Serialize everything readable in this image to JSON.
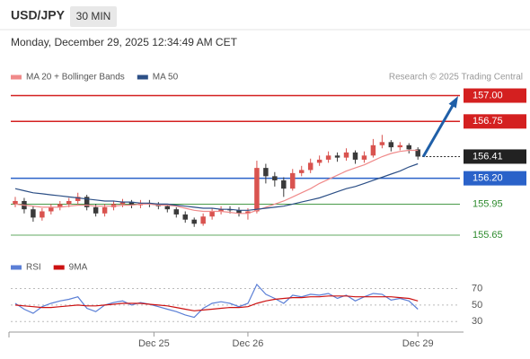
{
  "header": {
    "symbol": "USD/JPY",
    "timeframe": "30 MIN",
    "timestamp": "Monday, December 29, 2025 12:34:49 AM CET"
  },
  "chart_data": [
    {
      "type": "candlestick",
      "credit": "Research © 2025 Trading Central",
      "xlim": [
        -0.5,
        50.5
      ],
      "ylim": [
        155.45,
        157.1
      ],
      "up_color": "#d9534f",
      "down_color": "#3a3a3a",
      "open": [
        155.95,
        155.98,
        155.9,
        155.82,
        155.88,
        155.92,
        155.95,
        155.98,
        156.02,
        155.92,
        155.86,
        155.92,
        155.95,
        155.97,
        155.94,
        155.96,
        155.95,
        155.93,
        155.9,
        155.85,
        155.8,
        155.76,
        155.83,
        155.88,
        155.9,
        155.89,
        155.86,
        155.88,
        156.3,
        156.22,
        156.18,
        156.1,
        156.25,
        156.28,
        156.35,
        156.38,
        156.42,
        156.4,
        156.45,
        156.38,
        156.42,
        156.52,
        156.55,
        156.5,
        156.52,
        156.48
      ],
      "high": [
        156.02,
        156.01,
        155.93,
        155.91,
        155.95,
        155.98,
        156.01,
        156.06,
        156.04,
        155.95,
        155.95,
        155.98,
        156.0,
        155.99,
        155.99,
        155.99,
        155.97,
        155.95,
        155.92,
        155.88,
        155.82,
        155.86,
        155.91,
        155.93,
        155.93,
        155.92,
        155.91,
        156.37,
        156.34,
        156.26,
        156.21,
        156.29,
        156.32,
        156.39,
        156.42,
        156.46,
        156.45,
        156.49,
        156.47,
        156.46,
        156.58,
        156.62,
        156.57,
        156.55,
        156.54,
        156.5
      ],
      "low": [
        155.92,
        155.86,
        155.78,
        155.79,
        155.85,
        155.89,
        155.92,
        155.95,
        155.89,
        155.83,
        155.83,
        155.89,
        155.92,
        155.91,
        155.91,
        155.92,
        155.9,
        155.87,
        155.82,
        155.77,
        155.73,
        155.74,
        155.8,
        155.85,
        155.86,
        155.83,
        155.8,
        155.86,
        156.15,
        156.12,
        156.02,
        156.08,
        156.22,
        156.25,
        156.32,
        156.35,
        156.36,
        156.37,
        156.34,
        156.35,
        156.4,
        156.49,
        156.46,
        156.47,
        156.44,
        156.38
      ],
      "close": [
        155.98,
        155.9,
        155.82,
        155.88,
        155.92,
        155.95,
        155.98,
        156.02,
        155.92,
        155.86,
        155.92,
        155.95,
        155.97,
        155.94,
        155.96,
        155.95,
        155.93,
        155.9,
        155.85,
        155.8,
        155.76,
        155.83,
        155.88,
        155.9,
        155.89,
        155.86,
        155.88,
        156.3,
        156.22,
        156.18,
        156.1,
        156.25,
        156.28,
        156.35,
        156.38,
        156.42,
        156.4,
        156.45,
        156.38,
        156.42,
        156.52,
        156.55,
        156.5,
        156.52,
        156.48,
        156.41
      ],
      "series": [
        {
          "name": "MA 20 + Bollinger Bands",
          "color": "#f08a8a",
          "values": [
            155.95,
            155.94,
            155.93,
            155.92,
            155.92,
            155.92,
            155.93,
            155.94,
            155.94,
            155.93,
            155.93,
            155.93,
            155.94,
            155.94,
            155.95,
            155.95,
            155.94,
            155.94,
            155.93,
            155.91,
            155.89,
            155.88,
            155.88,
            155.88,
            155.87,
            155.86,
            155.86,
            155.89,
            155.92,
            155.95,
            155.98,
            156.02,
            156.06,
            156.1,
            156.15,
            156.19,
            156.23,
            156.27,
            156.3,
            156.33,
            156.37,
            156.41,
            156.44,
            156.46,
            156.47,
            156.47
          ]
        },
        {
          "name": "MA 50",
          "color": "#2c4f86",
          "values": [
            156.1,
            156.08,
            156.06,
            156.05,
            156.04,
            156.03,
            156.02,
            156.01,
            156.0,
            155.99,
            155.98,
            155.98,
            155.97,
            155.97,
            155.96,
            155.96,
            155.95,
            155.95,
            155.94,
            155.93,
            155.92,
            155.91,
            155.91,
            155.9,
            155.9,
            155.89,
            155.89,
            155.9,
            155.91,
            155.92,
            155.93,
            155.95,
            155.97,
            155.99,
            156.01,
            156.04,
            156.07,
            156.1,
            156.12,
            156.15,
            156.18,
            156.21,
            156.24,
            156.27,
            156.31,
            156.34
          ]
        }
      ],
      "levels": [
        {
          "value": 157,
          "label": "157.00",
          "color": "#d42020",
          "label_style": "box"
        },
        {
          "value": 156.75,
          "label": "156.75",
          "color": "#d42020",
          "label_style": "box"
        },
        {
          "value": 156.41,
          "label": "156.41",
          "color": "#222222",
          "label_style": "box"
        },
        {
          "value": 156.2,
          "label": "156.20",
          "color": "#2a62c9",
          "label_style": "box"
        },
        {
          "value": 155.95,
          "label": "155.95",
          "color": "#2e8b2e",
          "label_style": "text"
        },
        {
          "value": 155.65,
          "label": "155.65",
          "color": "#2e8b2e",
          "label_style": "text"
        }
      ]
    },
    {
      "type": "line",
      "xlim": [
        -0.5,
        50.5
      ],
      "ylim": [
        15,
        88
      ],
      "xticks": [
        {
          "value": 15.5,
          "label": "Dec 25"
        },
        {
          "value": 26,
          "label": "Dec 26"
        },
        {
          "value": 45,
          "label": "Dec 29"
        }
      ],
      "yticks": [
        70,
        50,
        30
      ],
      "grid": true,
      "series": [
        {
          "name": "RSI",
          "color": "#5b7fd6",
          "values": [
            52,
            45,
            40,
            48,
            52,
            55,
            57,
            60,
            46,
            42,
            50,
            53,
            55,
            50,
            53,
            51,
            48,
            45,
            42,
            38,
            35,
            46,
            52,
            54,
            52,
            48,
            52,
            75,
            63,
            58,
            52,
            62,
            60,
            63,
            62,
            64,
            58,
            62,
            55,
            60,
            64,
            63,
            56,
            58,
            55,
            45
          ]
        },
        {
          "name": "9MA",
          "color": "#cc1111",
          "values": [
            50,
            49,
            48,
            47,
            47,
            48,
            49,
            50,
            49,
            49,
            50,
            51,
            52,
            52,
            52,
            51,
            50,
            49,
            47,
            45,
            43,
            44,
            45,
            46,
            47,
            47,
            48,
            52,
            55,
            57,
            58,
            59,
            59,
            60,
            60,
            61,
            61,
            61,
            60,
            60,
            60,
            60,
            60,
            59,
            58,
            55
          ]
        }
      ]
    }
  ]
}
